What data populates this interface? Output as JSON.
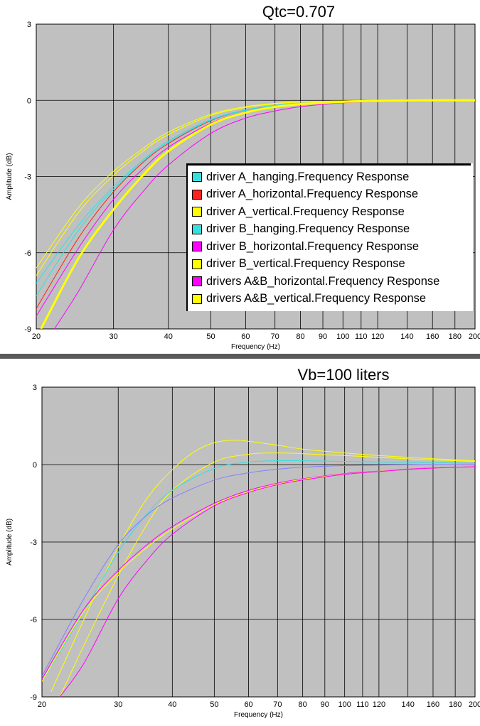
{
  "chart_data": [
    {
      "type": "line",
      "title": "Qtc=0.707",
      "xlabel": "Frequency (Hz)",
      "ylabel": "Amplitude (dB)",
      "xscale": "log",
      "xlim": [
        20,
        200
      ],
      "ylim": [
        -9,
        3
      ],
      "x_ticks": [
        "20",
        "30",
        "40",
        "50",
        "60",
        "70",
        "80",
        "90",
        "100",
        "110",
        "120",
        "140",
        "160",
        "180",
        "200"
      ],
      "y_ticks": [
        "3",
        "0",
        "-3",
        "-6",
        "-9"
      ],
      "grid": true,
      "legend": "right",
      "background": "#c0c0c0",
      "series": [
        {
          "name": "driver A_hanging.Frequency Response",
          "color": "#33e0e0",
          "x": [
            20,
            25,
            30,
            35,
            40,
            50,
            60,
            70,
            80,
            100,
            120,
            150,
            200
          ],
          "y": [
            -7.2,
            -4.9,
            -3.4,
            -2.35,
            -1.6,
            -0.75,
            -0.38,
            -0.2,
            -0.12,
            -0.05,
            -0.02,
            0,
            0
          ]
        },
        {
          "name": "driver A_horizontal.Frequency Response",
          "color": "#ff2020",
          "x": [
            20,
            25,
            30,
            35,
            40,
            50,
            60,
            70,
            80,
            100,
            120,
            150,
            200
          ],
          "y": [
            -8.2,
            -5.4,
            -3.6,
            -2.45,
            -1.7,
            -0.8,
            -0.4,
            -0.22,
            -0.13,
            -0.05,
            -0.02,
            0,
            0
          ]
        },
        {
          "name": "driver A_vertical.Frequency Response",
          "color": "#ffff00",
          "x": [
            20,
            25,
            30,
            35,
            40,
            50,
            60,
            70,
            80,
            100,
            120,
            150,
            200
          ],
          "y": [
            -6.6,
            -4.2,
            -2.8,
            -1.9,
            -1.25,
            -0.55,
            -0.25,
            -0.12,
            -0.06,
            -0.02,
            0,
            0.02,
            0.03
          ]
        },
        {
          "name": "driver B_hanging.Frequency Response",
          "color": "#33e0e0",
          "x": [
            20,
            25,
            30,
            35,
            40,
            50,
            60,
            70,
            80,
            100,
            120,
            150,
            200
          ],
          "y": [
            -7.7,
            -5.1,
            -3.5,
            -2.4,
            -1.65,
            -0.78,
            -0.4,
            -0.21,
            -0.12,
            -0.05,
            -0.02,
            0,
            0
          ]
        },
        {
          "name": "driver B_horizontal.Frequency Response",
          "color": "#ff00ff",
          "x": [
            22,
            25,
            30,
            35,
            40,
            50,
            60,
            70,
            80,
            100,
            120,
            150,
            200
          ],
          "y": [
            -9,
            -7.5,
            -5.1,
            -3.6,
            -2.55,
            -1.3,
            -0.7,
            -0.42,
            -0.25,
            -0.1,
            -0.05,
            -0.02,
            0
          ]
        },
        {
          "name": "driver B_vertical.Frequency Response",
          "color": "#ffff00",
          "x": [
            20,
            25,
            30,
            35,
            40,
            50,
            60,
            70,
            80,
            100,
            120,
            150,
            200
          ],
          "y": [
            -6.9,
            -4.4,
            -2.95,
            -2.0,
            -1.35,
            -0.6,
            -0.28,
            -0.14,
            -0.07,
            -0.02,
            0,
            0.02,
            0.03
          ]
        },
        {
          "name": "drivers A&B_horizontal.Frequency Response",
          "color": "#ff00ff",
          "x": [
            20,
            25,
            30,
            35,
            40,
            50,
            60,
            70,
            80,
            100,
            120,
            150,
            200
          ],
          "y": [
            -8.5,
            -5.8,
            -3.9,
            -2.7,
            -1.85,
            -0.9,
            -0.45,
            -0.25,
            -0.15,
            -0.06,
            -0.02,
            0,
            0
          ]
        },
        {
          "name": "drivers A&B_vertical.Frequency Response",
          "color": "#ffff00",
          "x": [
            20.5,
            25,
            30,
            35,
            40,
            50,
            60,
            70,
            80,
            100,
            120,
            150,
            200
          ],
          "y": [
            -9,
            -6.2,
            -4.3,
            -2.95,
            -2.0,
            -0.95,
            -0.48,
            -0.26,
            -0.15,
            -0.06,
            -0.02,
            0,
            0
          ]
        }
      ]
    },
    {
      "type": "line",
      "title": "Vb=100 liters",
      "xlabel": "Frequency (Hz)",
      "ylabel": "Amplitude (dB)",
      "xscale": "log",
      "xlim": [
        20,
        200
      ],
      "ylim": [
        -9,
        3
      ],
      "x_ticks": [
        "20",
        "30",
        "40",
        "50",
        "60",
        "70",
        "80",
        "90",
        "100",
        "110",
        "120",
        "140",
        "160",
        "180",
        "200"
      ],
      "y_ticks": [
        "3",
        "0",
        "-3",
        "-6",
        "-9"
      ],
      "grid": true,
      "background": "#c0c0c0",
      "series": [
        {
          "color": "#ffff00",
          "x": [
            21,
            25,
            30,
            35,
            40,
            45,
            50,
            56,
            60,
            70,
            80,
            100,
            120,
            150,
            200
          ],
          "y": [
            -8.8,
            -6.0,
            -3.2,
            -1.3,
            -0.2,
            0.5,
            0.85,
            0.95,
            0.9,
            0.75,
            0.6,
            0.45,
            0.35,
            0.25,
            0.15
          ]
        },
        {
          "color": "#ffff00",
          "x": [
            22,
            25,
            30,
            35,
            40,
            50,
            60,
            70,
            80,
            100,
            120,
            150,
            200
          ],
          "y": [
            -9,
            -7.0,
            -4.3,
            -2.3,
            -1.0,
            0.1,
            0.4,
            0.45,
            0.42,
            0.35,
            0.28,
            0.2,
            0.12
          ]
        },
        {
          "color": "#33e0e0",
          "x": [
            20,
            25,
            30,
            35,
            40,
            50,
            60,
            70,
            80,
            100,
            120,
            150,
            200
          ],
          "y": [
            -8.4,
            -5.7,
            -3.4,
            -1.9,
            -1.0,
            -0.15,
            0.1,
            0.15,
            0.15,
            0.12,
            0.1,
            0.08,
            0.05
          ]
        },
        {
          "color": "#8080ff",
          "x": [
            20,
            25,
            30,
            35,
            40,
            50,
            60,
            70,
            80,
            100,
            120,
            150,
            200
          ],
          "y": [
            -8.2,
            -5.2,
            -3.1,
            -1.95,
            -1.3,
            -0.6,
            -0.32,
            -0.18,
            -0.1,
            -0.04,
            -0.02,
            0,
            0
          ]
        },
        {
          "color": "#ff00ff",
          "x": [
            20,
            25,
            30,
            35,
            40,
            50,
            60,
            70,
            80,
            100,
            120,
            150,
            200
          ],
          "y": [
            -8.3,
            -5.6,
            -4.1,
            -3.1,
            -2.4,
            -1.5,
            -1.0,
            -0.72,
            -0.55,
            -0.35,
            -0.25,
            -0.15,
            -0.08
          ]
        },
        {
          "color": "#ffff00",
          "x": [
            20,
            25,
            30,
            35,
            40,
            50,
            60,
            70,
            80,
            100,
            120,
            150,
            200
          ],
          "y": [
            -8.4,
            -5.7,
            -4.2,
            -3.2,
            -2.5,
            -1.55,
            -1.05,
            -0.75,
            -0.57,
            -0.37,
            -0.26,
            -0.16,
            -0.08
          ]
        },
        {
          "color": "#ff00ff",
          "x": [
            22,
            25,
            30,
            35,
            40,
            50,
            60,
            70,
            80,
            100,
            120,
            150,
            200
          ],
          "y": [
            -9,
            -7.7,
            -5.2,
            -3.7,
            -2.7,
            -1.6,
            -1.08,
            -0.78,
            -0.6,
            -0.38,
            -0.27,
            -0.16,
            -0.08
          ]
        }
      ]
    }
  ]
}
